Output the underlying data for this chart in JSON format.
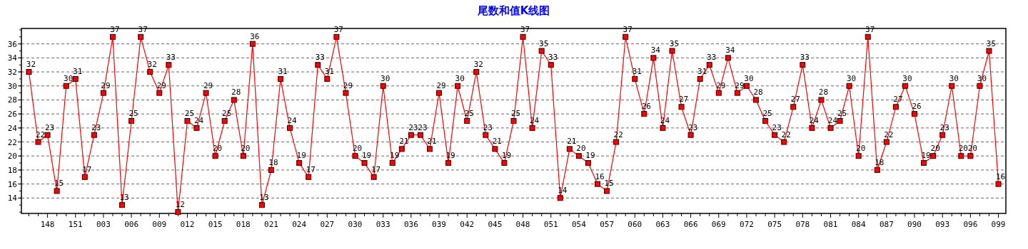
{
  "chart_data": {
    "type": "line",
    "title": "尾数和值K线图",
    "categories": [
      null,
      null,
      "148",
      null,
      null,
      "151",
      null,
      null,
      "003",
      null,
      null,
      "006",
      null,
      null,
      "009",
      null,
      null,
      "012",
      null,
      null,
      "015",
      null,
      null,
      "018",
      null,
      null,
      "021",
      null,
      null,
      "024",
      null,
      null,
      "027",
      null,
      null,
      "030",
      null,
      null,
      "033",
      null,
      null,
      "036",
      null,
      null,
      "039",
      null,
      null,
      "042",
      null,
      null,
      "045",
      null,
      null,
      "048",
      null,
      null,
      "051",
      null,
      null,
      "054",
      null,
      null,
      "057",
      null,
      null,
      "060",
      null,
      null,
      "063",
      null,
      null,
      "066",
      null,
      null,
      "069",
      null,
      null,
      "072",
      null,
      null,
      "075",
      null,
      null,
      "078",
      null,
      null,
      "081",
      null,
      null,
      "084",
      null,
      null,
      "087",
      null,
      null,
      "090",
      null,
      null,
      "093",
      null,
      null,
      "096",
      null,
      null,
      "099"
    ],
    "values": [
      32,
      22,
      23,
      15,
      30,
      31,
      17,
      23,
      29,
      37,
      13,
      25,
      37,
      32,
      29,
      33,
      12,
      25,
      24,
      29,
      20,
      25,
      28,
      20,
      36,
      13,
      18,
      31,
      24,
      19,
      17,
      33,
      31,
      37,
      29,
      20,
      19,
      17,
      30,
      19,
      21,
      23,
      23,
      21,
      29,
      19,
      30,
      25,
      32,
      23,
      21,
      19,
      25,
      37,
      24,
      35,
      33,
      14,
      21,
      20,
      19,
      16,
      15,
      22,
      37,
      31,
      26,
      34,
      24,
      35,
      27,
      23,
      31,
      33,
      29,
      34,
      29,
      30,
      28,
      25,
      23,
      22,
      27,
      33,
      24,
      28,
      24,
      25,
      30,
      20,
      37,
      18,
      22,
      27,
      30,
      26,
      19,
      20,
      23,
      30,
      20,
      20,
      30,
      35,
      16
    ],
    "color": "#ff0000",
    "ylim": [
      11.8,
      38.2
    ],
    "yticks": [
      14,
      16,
      18,
      20,
      22,
      24,
      26,
      28,
      30,
      32,
      34,
      36
    ],
    "grid": "y",
    "marker": "square",
    "data_labels": true
  }
}
